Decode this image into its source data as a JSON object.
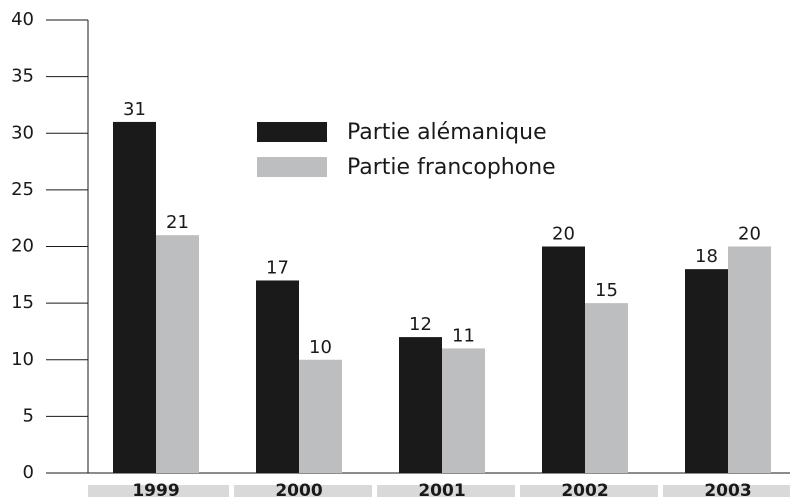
{
  "chart_data": {
    "type": "bar",
    "categories": [
      "1999",
      "2000",
      "2001",
      "2002",
      "2003"
    ],
    "series": [
      {
        "name": "Partie alémanique",
        "color": "#1a1a1a",
        "values": [
          31,
          17,
          12,
          20,
          18
        ]
      },
      {
        "name": "Partie francophone",
        "color": "#bdbec0",
        "values": [
          21,
          10,
          11,
          15,
          20
        ]
      }
    ],
    "ylim": [
      0,
      40
    ],
    "yticks": [
      0,
      5,
      10,
      15,
      20,
      25,
      30,
      35,
      40
    ],
    "data_labels": true
  }
}
